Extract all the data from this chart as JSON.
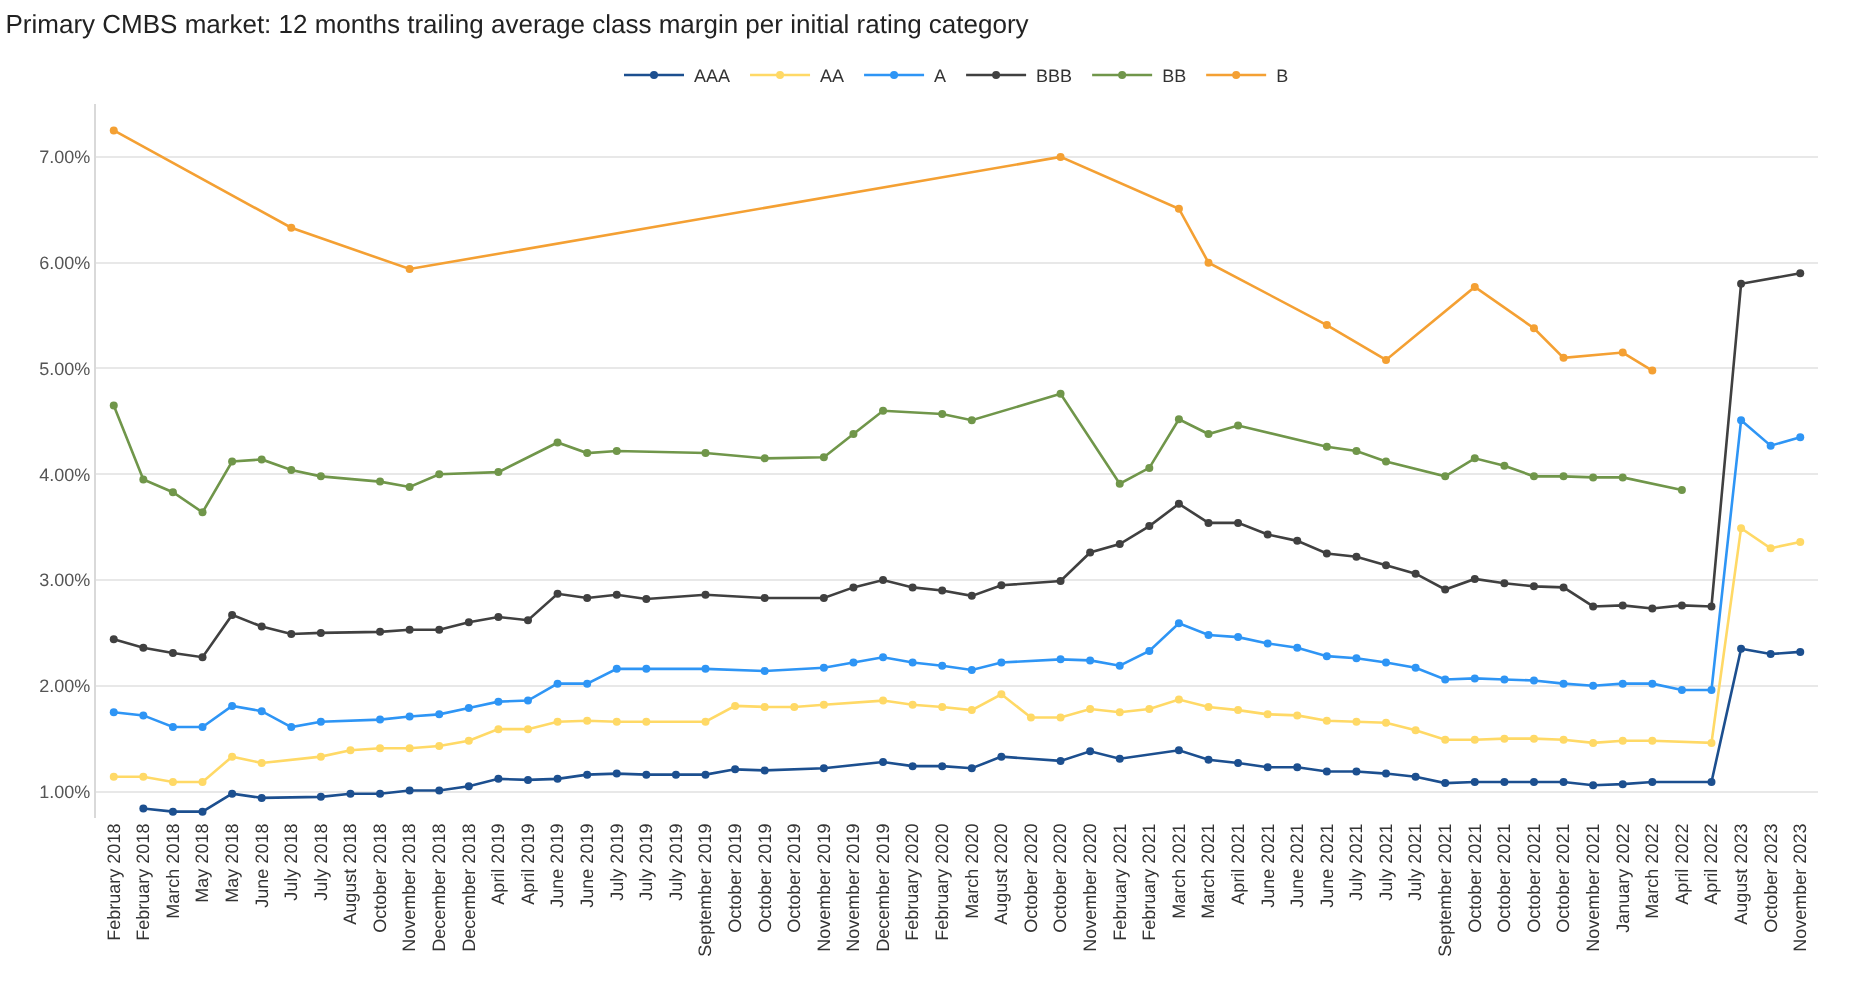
{
  "chart_data": {
    "type": "line",
    "title": "Primary CMBS market: 12 months trailing average class margin per initial rating category",
    "categories": [
      "February 2018",
      "February 2018",
      "March 2018",
      "May 2018",
      "May 2018",
      "June 2018",
      "July 2018",
      "July 2018",
      "August 2018",
      "October 2018",
      "November 2018",
      "December 2018",
      "December 2018",
      "April 2019",
      "April 2019",
      "June 2019",
      "June 2019",
      "July 2019",
      "July 2019",
      "July 2019",
      "September 2019",
      "October 2019",
      "October 2019",
      "October 2019",
      "November 2019",
      "November 2019",
      "December 2019",
      "February 2020",
      "February 2020",
      "March 2020",
      "August 2020",
      "October 2020",
      "October 2020",
      "November 2020",
      "February 2021",
      "February 2021",
      "March 2021",
      "March 2021",
      "April 2021",
      "June 2021",
      "June 2021",
      "June 2021",
      "July 2021",
      "July 2021",
      "July 2021",
      "September 2021",
      "October 2021",
      "October 2021",
      "October 2021",
      "October 2021",
      "November 2021",
      "January 2022",
      "March 2022",
      "April 2022",
      "April 2022",
      "August 2023",
      "October 2023",
      "November 2023"
    ],
    "series": [
      {
        "name": "AAA",
        "color": "#1c4f8f",
        "values": [
          null,
          0.84,
          0.81,
          0.81,
          0.98,
          0.94,
          null,
          0.95,
          0.98,
          0.98,
          1.01,
          1.01,
          1.05,
          1.12,
          1.11,
          1.12,
          1.16,
          1.17,
          1.16,
          1.16,
          1.16,
          1.21,
          1.2,
          null,
          1.22,
          null,
          1.28,
          1.24,
          1.24,
          1.22,
          1.33,
          null,
          1.29,
          1.38,
          1.31,
          null,
          1.39,
          1.3,
          1.27,
          1.23,
          1.23,
          1.19,
          1.19,
          1.17,
          1.14,
          1.08,
          1.09,
          1.09,
          1.09,
          1.09,
          1.06,
          1.07,
          1.09,
          null,
          1.09,
          2.35,
          2.3,
          2.32
        ]
      },
      {
        "name": "AA",
        "color": "#ffd966",
        "values": [
          1.14,
          1.14,
          1.09,
          1.09,
          1.33,
          1.27,
          null,
          1.33,
          1.39,
          1.41,
          1.41,
          1.43,
          1.48,
          1.59,
          1.59,
          1.66,
          1.67,
          1.66,
          1.66,
          null,
          1.66,
          1.81,
          1.8,
          1.8,
          1.82,
          null,
          1.86,
          1.82,
          1.8,
          1.77,
          1.92,
          1.7,
          1.7,
          1.78,
          1.75,
          1.78,
          1.87,
          1.8,
          1.77,
          1.73,
          1.72,
          1.67,
          1.66,
          1.65,
          1.58,
          1.49,
          1.49,
          1.5,
          1.5,
          1.49,
          1.46,
          1.48,
          1.48,
          null,
          1.46,
          3.49,
          3.3,
          3.36
        ]
      },
      {
        "name": "A",
        "color": "#2e95f5",
        "values": [
          1.75,
          1.72,
          1.61,
          1.61,
          1.81,
          1.76,
          1.61,
          1.66,
          null,
          1.68,
          1.71,
          1.73,
          1.79,
          1.85,
          1.86,
          2.02,
          2.02,
          2.16,
          2.16,
          null,
          2.16,
          null,
          2.14,
          null,
          2.17,
          2.22,
          2.27,
          2.22,
          2.19,
          2.15,
          2.22,
          null,
          2.25,
          2.24,
          2.19,
          2.33,
          2.59,
          2.48,
          2.46,
          2.4,
          2.36,
          2.28,
          2.26,
          2.22,
          2.17,
          2.06,
          2.07,
          2.06,
          2.05,
          2.02,
          2.0,
          2.02,
          2.02,
          1.96,
          1.96,
          4.51,
          4.27,
          4.35
        ]
      },
      {
        "name": "BBB",
        "color": "#404040",
        "values": [
          2.44,
          2.36,
          2.31,
          2.27,
          2.67,
          2.56,
          2.49,
          2.5,
          null,
          2.51,
          2.53,
          2.53,
          2.6,
          2.65,
          2.62,
          2.87,
          2.83,
          2.86,
          2.82,
          null,
          2.86,
          null,
          2.83,
          null,
          2.83,
          2.93,
          3.0,
          2.93,
          2.9,
          2.85,
          2.95,
          null,
          2.99,
          3.26,
          3.34,
          3.51,
          3.72,
          3.54,
          3.54,
          3.43,
          3.37,
          3.25,
          3.22,
          3.14,
          3.06,
          2.91,
          3.01,
          2.97,
          2.94,
          2.93,
          2.75,
          2.76,
          2.73,
          2.76,
          2.75,
          5.8,
          null,
          5.9
        ]
      },
      {
        "name": "BB",
        "color": "#70964a",
        "values": [
          4.65,
          3.95,
          3.83,
          3.64,
          4.12,
          4.14,
          4.04,
          3.98,
          null,
          3.93,
          3.88,
          4.0,
          null,
          4.02,
          null,
          4.3,
          4.2,
          4.22,
          null,
          null,
          4.2,
          null,
          4.15,
          null,
          4.16,
          4.38,
          4.6,
          null,
          4.57,
          4.51,
          null,
          null,
          4.76,
          null,
          3.91,
          4.06,
          4.52,
          4.38,
          4.46,
          null,
          null,
          4.26,
          4.22,
          4.12,
          null,
          3.98,
          4.15,
          4.08,
          3.98,
          3.98,
          3.97,
          3.97,
          null,
          3.85,
          null,
          null,
          null,
          null
        ]
      },
      {
        "name": "B",
        "color": "#f4a033",
        "values": [
          7.25,
          null,
          null,
          null,
          null,
          null,
          6.33,
          null,
          null,
          null,
          5.94,
          null,
          null,
          null,
          null,
          null,
          null,
          null,
          null,
          null,
          null,
          null,
          null,
          null,
          null,
          null,
          null,
          null,
          null,
          null,
          null,
          null,
          7.0,
          null,
          null,
          null,
          6.51,
          6.0,
          null,
          null,
          null,
          5.41,
          null,
          5.08,
          null,
          null,
          5.77,
          null,
          5.38,
          5.1,
          null,
          5.15,
          4.98,
          null,
          null,
          null,
          null,
          null
        ]
      }
    ],
    "ylim": [
      0.75,
      7.5
    ],
    "yticks": [
      {
        "value": 1,
        "label": "1.00%"
      },
      {
        "value": 2,
        "label": "2.00%"
      },
      {
        "value": 3,
        "label": "3.00%"
      },
      {
        "value": 4,
        "label": "4.00%"
      },
      {
        "value": 5,
        "label": "5.00%"
      },
      {
        "value": 6,
        "label": "6.00%"
      },
      {
        "value": 7,
        "label": "7.00%"
      }
    ],
    "grid": "y",
    "legend": "top",
    "marker": "circle",
    "line_style": "solid"
  }
}
